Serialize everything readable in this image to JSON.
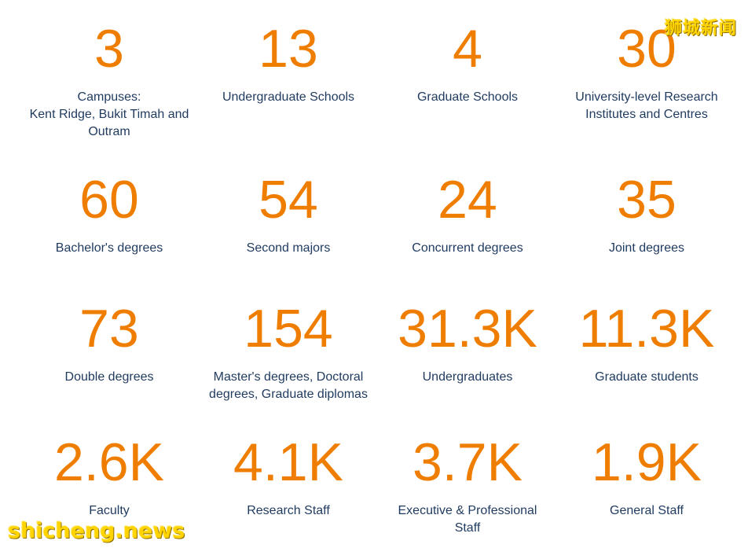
{
  "stats": [
    {
      "value": "3",
      "label": "Campuses:\nKent Ridge, Bukit Timah and\nOutram"
    },
    {
      "value": "13",
      "label": "Undergraduate Schools"
    },
    {
      "value": "4",
      "label": "Graduate Schools"
    },
    {
      "value": "30",
      "label": "University-level Research\nInstitutes and Centres"
    },
    {
      "value": "60",
      "label": "Bachelor's degrees"
    },
    {
      "value": "54",
      "label": "Second majors"
    },
    {
      "value": "24",
      "label": "Concurrent degrees"
    },
    {
      "value": "35",
      "label": "Joint degrees"
    },
    {
      "value": "73",
      "label": "Double degrees"
    },
    {
      "value": "154",
      "label": "Master's degrees, Doctoral\ndegrees, Graduate diplomas"
    },
    {
      "value": "31.3K",
      "label": "Undergraduates"
    },
    {
      "value": "11.3K",
      "label": "Graduate students"
    },
    {
      "value": "2.6K",
      "label": "Faculty"
    },
    {
      "value": "4.1K",
      "label": "Research Staff"
    },
    {
      "value": "3.7K",
      "label": "Executive & Professional\nStaff"
    },
    {
      "value": "1.9K",
      "label": "General Staff"
    }
  ],
  "watermark": {
    "top_right": "狮城新闻",
    "bottom_left": "shicheng.news"
  },
  "colors": {
    "number": "#ef7d00",
    "label": "#1f3a5f",
    "watermark": "#ffd400"
  }
}
